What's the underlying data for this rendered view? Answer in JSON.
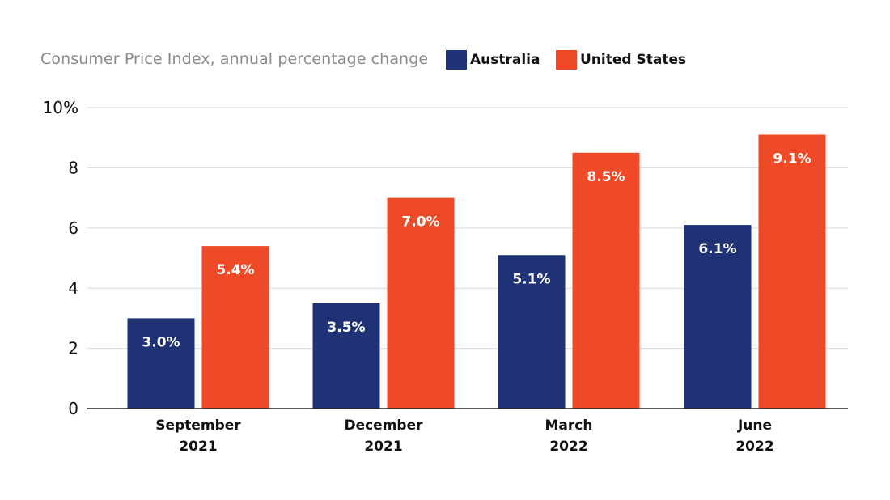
{
  "chart_data": {
    "type": "bar",
    "title": "",
    "subtitle": "Consumer Price Index, annual percentage change",
    "xlabel": "",
    "ylabel": "",
    "ylim": [
      0,
      10
    ],
    "yticks": [
      "0",
      "2",
      "4",
      "6",
      "8",
      "10%"
    ],
    "ytick_values": [
      0,
      2,
      4,
      6,
      8,
      10
    ],
    "grid": true,
    "legend_position": "top",
    "categories": [
      [
        "September",
        "2021"
      ],
      [
        "December",
        "2021"
      ],
      [
        "March",
        "2022"
      ],
      [
        "June",
        "2022"
      ]
    ],
    "series": [
      {
        "name": "Australia",
        "color": "#1f3276",
        "values": [
          3.0,
          3.5,
          5.1,
          6.1
        ],
        "labels": [
          "3.0%",
          "3.5%",
          "5.1%",
          "6.1%"
        ]
      },
      {
        "name": "United States",
        "color": "#ef4a28",
        "values": [
          5.4,
          7.0,
          8.5,
          9.1
        ],
        "labels": [
          "5.4%",
          "7.0%",
          "8.5%",
          "9.1%"
        ]
      }
    ]
  }
}
